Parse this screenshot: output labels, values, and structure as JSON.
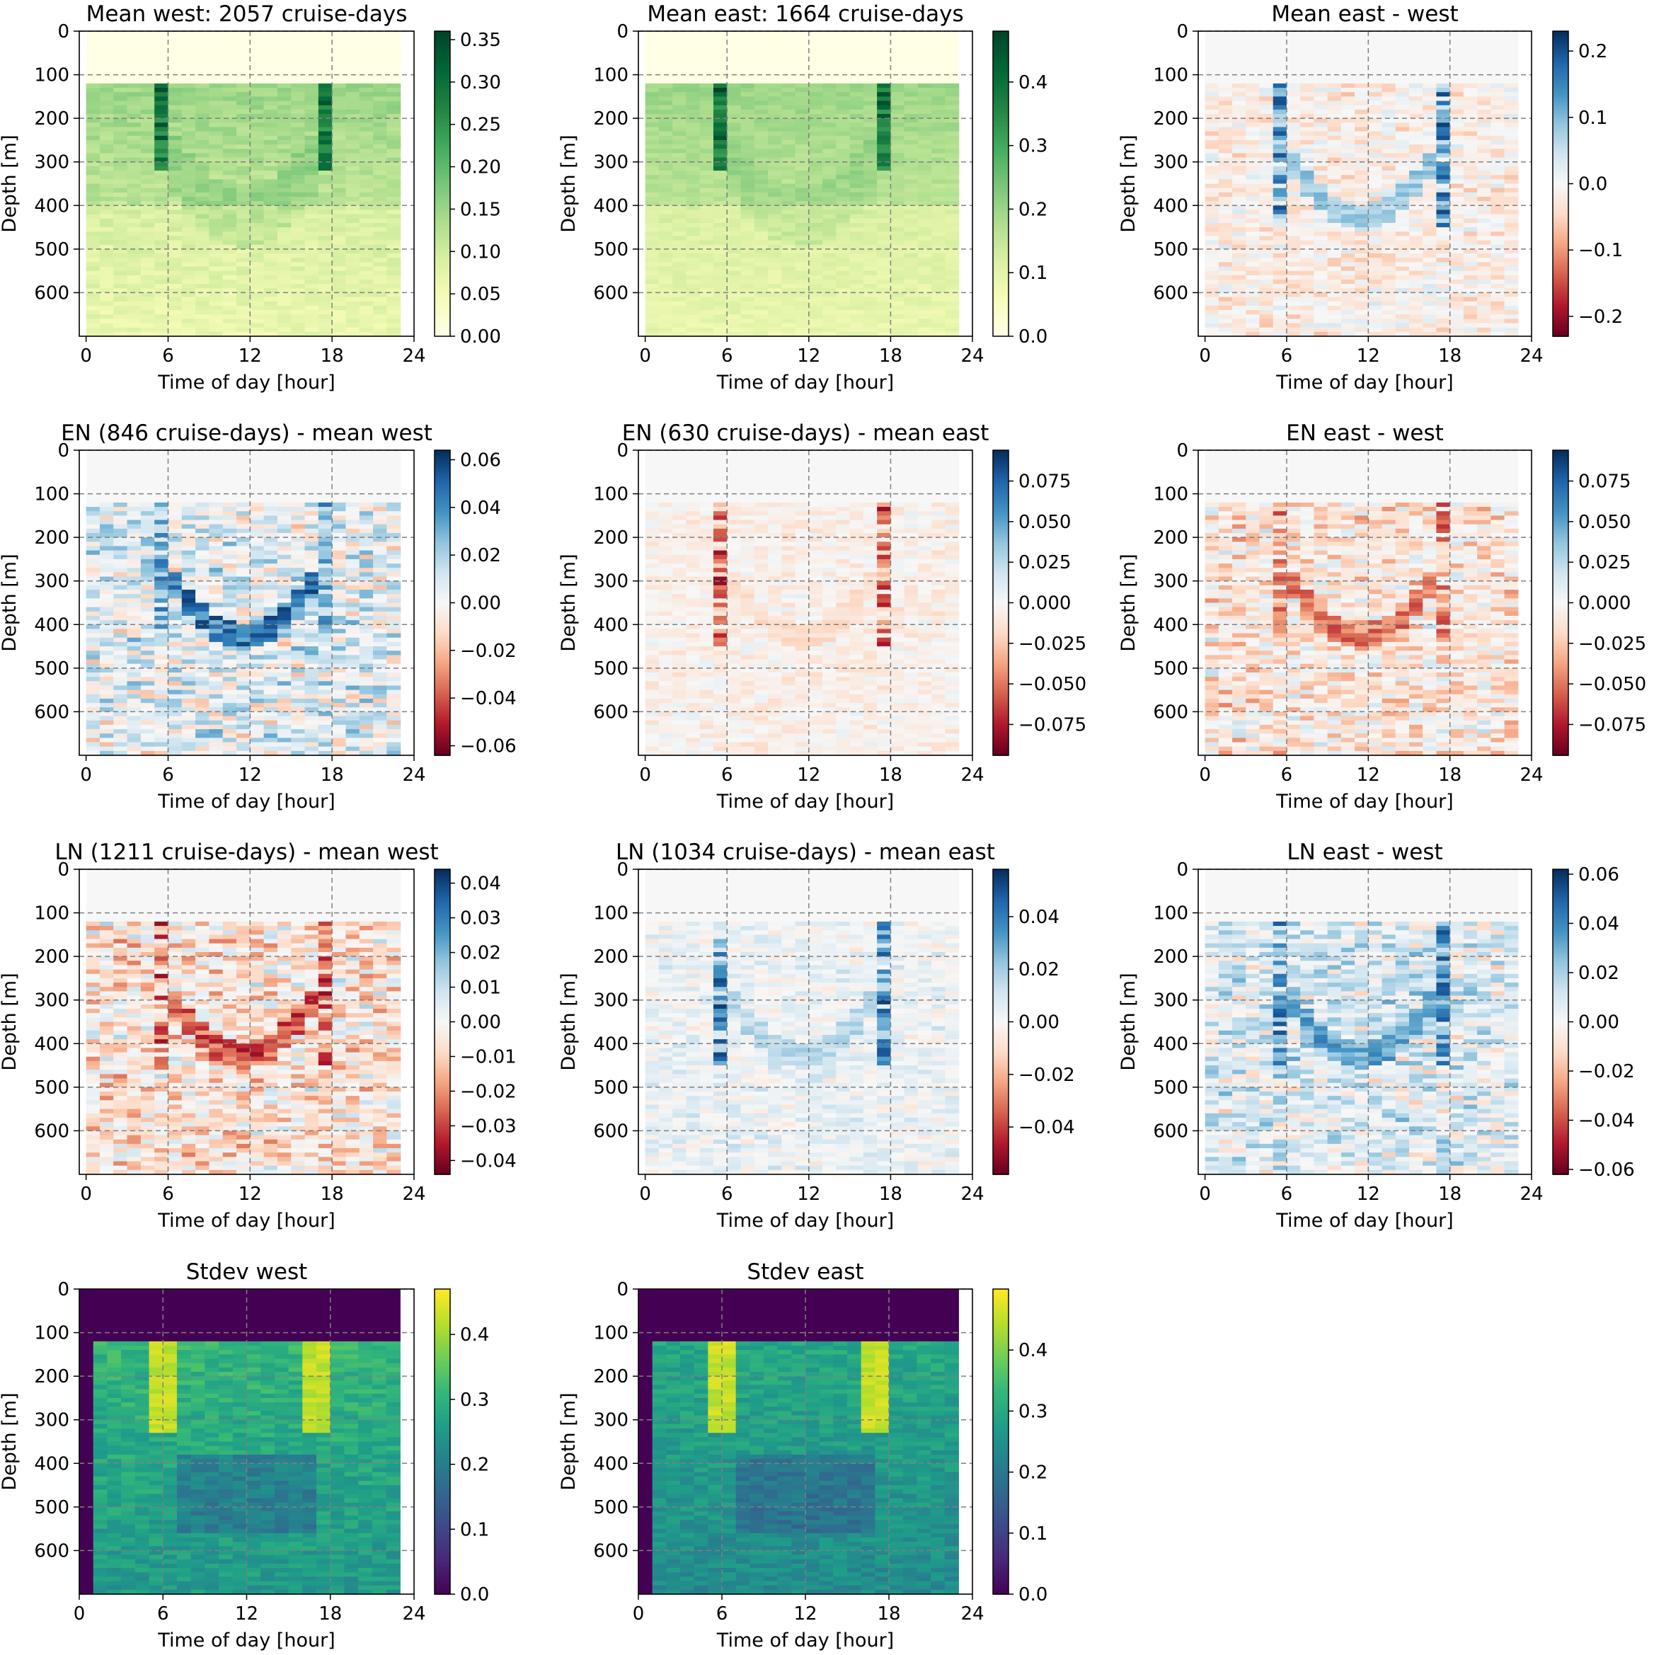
{
  "figure": {
    "panels": [
      {
        "title": "Mean west: 2057 cruise-days",
        "xlabel": "Time of day [hour]",
        "ylabel": "Depth [m]"
      },
      {
        "title": "Mean east: 1664 cruise-days",
        "xlabel": "Time of day [hour]",
        "ylabel": "Depth [m]"
      },
      {
        "title": "Mean east - west",
        "xlabel": "Time of day [hour]",
        "ylabel": "Depth [m]"
      },
      {
        "title": "EN (846 cruise-days) - mean west",
        "xlabel": "Time of day [hour]",
        "ylabel": "Depth [m]"
      },
      {
        "title": "EN (630 cruise-days) - mean east",
        "xlabel": "Time of day [hour]",
        "ylabel": "Depth [m]"
      },
      {
        "title": "EN east - west",
        "xlabel": "Time of day [hour]",
        "ylabel": "Depth [m]"
      },
      {
        "title": "LN (1211 cruise-days) - mean west",
        "xlabel": "Time of day [hour]",
        "ylabel": "Depth [m]"
      },
      {
        "title": "LN (1034 cruise-days) - mean east",
        "xlabel": "Time of day [hour]",
        "ylabel": "Depth [m]"
      },
      {
        "title": "LN east - west",
        "xlabel": "Time of day [hour]",
        "ylabel": "Depth [m]"
      },
      {
        "title": "Stdev west",
        "xlabel": "Time of day [hour]",
        "ylabel": "Depth [m]"
      },
      {
        "title": "Stdev east",
        "xlabel": "Time of day [hour]",
        "ylabel": "Depth [m]"
      }
    ]
  },
  "chart_data": [
    {
      "type": "heatmap",
      "title": "Mean west: 2057 cruise-days",
      "xlabel": "Time of day [hour]",
      "ylabel": "Depth [m]",
      "xlim": [
        -0.5,
        24
      ],
      "ylim": [
        700,
        0
      ],
      "xticks": [
        "0",
        "6",
        "12",
        "18",
        "24"
      ],
      "yticks": [
        "0",
        "100",
        "200",
        "300",
        "400",
        "500",
        "600"
      ],
      "colormap": "YlGn",
      "clim": [
        0,
        0.36
      ],
      "colorbar_ticks": [
        "0.00",
        "0.05",
        "0.10",
        "0.15",
        "0.20",
        "0.25",
        "0.30",
        "0.35"
      ],
      "colorbar_tick_values": [
        0,
        0.05,
        0.1,
        0.15,
        0.2,
        0.25,
        0.3,
        0.35
      ],
      "grid": "dashed",
      "field": "mean",
      "day_max": 0.2,
      "night_max": 0.15,
      "edge": 0.34
    },
    {
      "type": "heatmap",
      "title": "Mean east: 1664 cruise-days",
      "xlabel": "Time of day [hour]",
      "ylabel": "Depth [m]",
      "xlim": [
        -0.5,
        24
      ],
      "ylim": [
        700,
        0
      ],
      "xticks": [
        "0",
        "6",
        "12",
        "18",
        "24"
      ],
      "yticks": [
        "0",
        "100",
        "200",
        "300",
        "400",
        "500",
        "600"
      ],
      "colormap": "YlGn",
      "clim": [
        0,
        0.48
      ],
      "colorbar_ticks": [
        "0.0",
        "0.1",
        "0.2",
        "0.3",
        "0.4"
      ],
      "colorbar_tick_values": [
        0,
        0.1,
        0.2,
        0.3,
        0.4
      ],
      "grid": "dashed",
      "field": "mean",
      "day_max": 0.22,
      "night_max": 0.2,
      "edge": 0.46
    },
    {
      "type": "heatmap",
      "title": "Mean east - west",
      "xlabel": "Time of day [hour]",
      "ylabel": "Depth [m]",
      "xlim": [
        -0.5,
        24
      ],
      "ylim": [
        700,
        0
      ],
      "xticks": [
        "0",
        "6",
        "12",
        "18",
        "24"
      ],
      "yticks": [
        "0",
        "100",
        "200",
        "300",
        "400",
        "500",
        "600"
      ],
      "colormap": "RdBu",
      "clim": [
        -0.23,
        0.23
      ],
      "colorbar_ticks": [
        "−0.2",
        "−0.1",
        "0.0",
        "0.1",
        "0.2"
      ],
      "colorbar_tick_values": [
        -0.2,
        -0.1,
        0,
        0.1,
        0.2
      ],
      "grid": "dashed",
      "field": "anomaly",
      "band": 0.1,
      "edge": 0.22,
      "bg": -0.03
    },
    {
      "type": "heatmap",
      "title": "EN (846 cruise-days) - mean west",
      "xlabel": "Time of day [hour]",
      "ylabel": "Depth [m]",
      "xlim": [
        -0.5,
        24
      ],
      "ylim": [
        700,
        0
      ],
      "xticks": [
        "0",
        "6",
        "12",
        "18",
        "24"
      ],
      "yticks": [
        "0",
        "100",
        "200",
        "300",
        "400",
        "500",
        "600"
      ],
      "colormap": "RdBu",
      "clim": [
        -0.064,
        0.064
      ],
      "colorbar_ticks": [
        "−0.06",
        "−0.04",
        "−0.02",
        "0.00",
        "0.02",
        "0.04",
        "0.06"
      ],
      "colorbar_tick_values": [
        -0.06,
        -0.04,
        -0.02,
        0,
        0.02,
        0.04,
        0.06
      ],
      "grid": "dashed",
      "field": "anomaly",
      "band": 0.055,
      "edge": 0.05,
      "bg": 0.012
    },
    {
      "type": "heatmap",
      "title": "EN (630 cruise-days) - mean east",
      "xlabel": "Time of day [hour]",
      "ylabel": "Depth [m]",
      "xlim": [
        -0.5,
        24
      ],
      "ylim": [
        700,
        0
      ],
      "xticks": [
        "0",
        "6",
        "12",
        "18",
        "24"
      ],
      "yticks": [
        "0",
        "100",
        "200",
        "300",
        "400",
        "500",
        "600"
      ],
      "colormap": "RdBu",
      "clim": [
        -0.094,
        0.094
      ],
      "colorbar_ticks": [
        "−0.075",
        "−0.050",
        "−0.025",
        "0.000",
        "0.025",
        "0.050",
        "0.075"
      ],
      "colorbar_tick_values": [
        -0.075,
        -0.05,
        -0.025,
        0,
        0.025,
        0.05,
        0.075
      ],
      "grid": "dashed",
      "field": "anomaly",
      "band": -0.02,
      "edge": -0.085,
      "bg": -0.01
    },
    {
      "type": "heatmap",
      "title": "EN east - west",
      "xlabel": "Time of day [hour]",
      "ylabel": "Depth [m]",
      "xlim": [
        -0.5,
        24
      ],
      "ylim": [
        700,
        0
      ],
      "xticks": [
        "0",
        "6",
        "12",
        "18",
        "24"
      ],
      "yticks": [
        "0",
        "100",
        "200",
        "300",
        "400",
        "500",
        "600"
      ],
      "colormap": "RdBu",
      "clim": [
        -0.094,
        0.094
      ],
      "colorbar_ticks": [
        "−0.075",
        "−0.050",
        "−0.025",
        "0.000",
        "0.025",
        "0.050",
        "0.075"
      ],
      "colorbar_tick_values": [
        -0.075,
        -0.05,
        -0.025,
        0,
        0.025,
        0.05,
        0.075
      ],
      "grid": "dashed",
      "field": "anomaly",
      "band": -0.06,
      "edge": -0.07,
      "bg": -0.02
    },
    {
      "type": "heatmap",
      "title": "LN (1211 cruise-days) - mean west",
      "xlabel": "Time of day [hour]",
      "ylabel": "Depth [m]",
      "xlim": [
        -0.5,
        24
      ],
      "ylim": [
        700,
        0
      ],
      "xticks": [
        "0",
        "6",
        "12",
        "18",
        "24"
      ],
      "yticks": [
        "0",
        "100",
        "200",
        "300",
        "400",
        "500",
        "600"
      ],
      "colormap": "RdBu",
      "clim": [
        -0.044,
        0.044
      ],
      "colorbar_ticks": [
        "−0.04",
        "−0.03",
        "−0.02",
        "−0.01",
        "0.00",
        "0.01",
        "0.02",
        "0.03",
        "0.04"
      ],
      "colorbar_tick_values": [
        -0.04,
        -0.03,
        -0.02,
        -0.01,
        0,
        0.01,
        0.02,
        0.03,
        0.04
      ],
      "grid": "dashed",
      "field": "anomaly",
      "band": -0.035,
      "edge": -0.04,
      "bg": -0.01
    },
    {
      "type": "heatmap",
      "title": "LN (1034 cruise-days) - mean east",
      "xlabel": "Time of day [hour]",
      "ylabel": "Depth [m]",
      "xlim": [
        -0.5,
        24
      ],
      "ylim": [
        700,
        0
      ],
      "xticks": [
        "0",
        "6",
        "12",
        "18",
        "24"
      ],
      "yticks": [
        "0",
        "100",
        "200",
        "300",
        "400",
        "500",
        "600"
      ],
      "colormap": "RdBu",
      "clim": [
        -0.058,
        0.058
      ],
      "colorbar_ticks": [
        "−0.04",
        "−0.02",
        "0.00",
        "0.02",
        "0.04"
      ],
      "colorbar_tick_values": [
        -0.04,
        -0.02,
        0,
        0.02,
        0.04
      ],
      "grid": "dashed",
      "field": "anomaly",
      "band": 0.02,
      "edge": 0.055,
      "bg": 0.006
    },
    {
      "type": "heatmap",
      "title": "LN east - west",
      "xlabel": "Time of day [hour]",
      "ylabel": "Depth [m]",
      "xlim": [
        -0.5,
        24
      ],
      "ylim": [
        700,
        0
      ],
      "xticks": [
        "0",
        "6",
        "12",
        "18",
        "24"
      ],
      "yticks": [
        "0",
        "100",
        "200",
        "300",
        "400",
        "500",
        "600"
      ],
      "colormap": "RdBu",
      "clim": [
        -0.062,
        0.062
      ],
      "colorbar_ticks": [
        "−0.06",
        "−0.04",
        "−0.02",
        "0.00",
        "0.02",
        "0.04",
        "0.06"
      ],
      "colorbar_tick_values": [
        -0.06,
        -0.04,
        -0.02,
        0,
        0.02,
        0.04,
        0.06
      ],
      "grid": "dashed",
      "field": "anomaly",
      "band": 0.04,
      "edge": 0.055,
      "bg": 0.015
    },
    {
      "type": "heatmap",
      "title": "Stdev west",
      "xlabel": "Time of day [hour]",
      "ylabel": "Depth [m]",
      "xlim": [
        0,
        24
      ],
      "ylim": [
        700,
        0
      ],
      "xticks": [
        "0",
        "6",
        "12",
        "18",
        "24"
      ],
      "yticks": [
        "0",
        "100",
        "200",
        "300",
        "400",
        "500",
        "600"
      ],
      "colormap": "viridis",
      "clim": [
        0,
        0.47
      ],
      "colorbar_ticks": [
        "0.0",
        "0.1",
        "0.2",
        "0.3",
        "0.4"
      ],
      "colorbar_tick_values": [
        0,
        0.1,
        0.2,
        0.3,
        0.4
      ],
      "grid": "dashed",
      "field": "stdev",
      "base": 0.31,
      "edge": 0.45
    },
    {
      "type": "heatmap",
      "title": "Stdev east",
      "xlabel": "Time of day [hour]",
      "ylabel": "Depth [m]",
      "xlim": [
        0,
        24
      ],
      "ylim": [
        700,
        0
      ],
      "xticks": [
        "0",
        "6",
        "12",
        "18",
        "24"
      ],
      "yticks": [
        "0",
        "100",
        "200",
        "300",
        "400",
        "500",
        "600"
      ],
      "colormap": "viridis",
      "clim": [
        0,
        0.5
      ],
      "colorbar_ticks": [
        "0.0",
        "0.1",
        "0.2",
        "0.3",
        "0.4"
      ],
      "colorbar_tick_values": [
        0,
        0.1,
        0.2,
        0.3,
        0.4
      ],
      "grid": "dashed",
      "field": "stdev",
      "base": 0.3,
      "edge": 0.48
    }
  ]
}
